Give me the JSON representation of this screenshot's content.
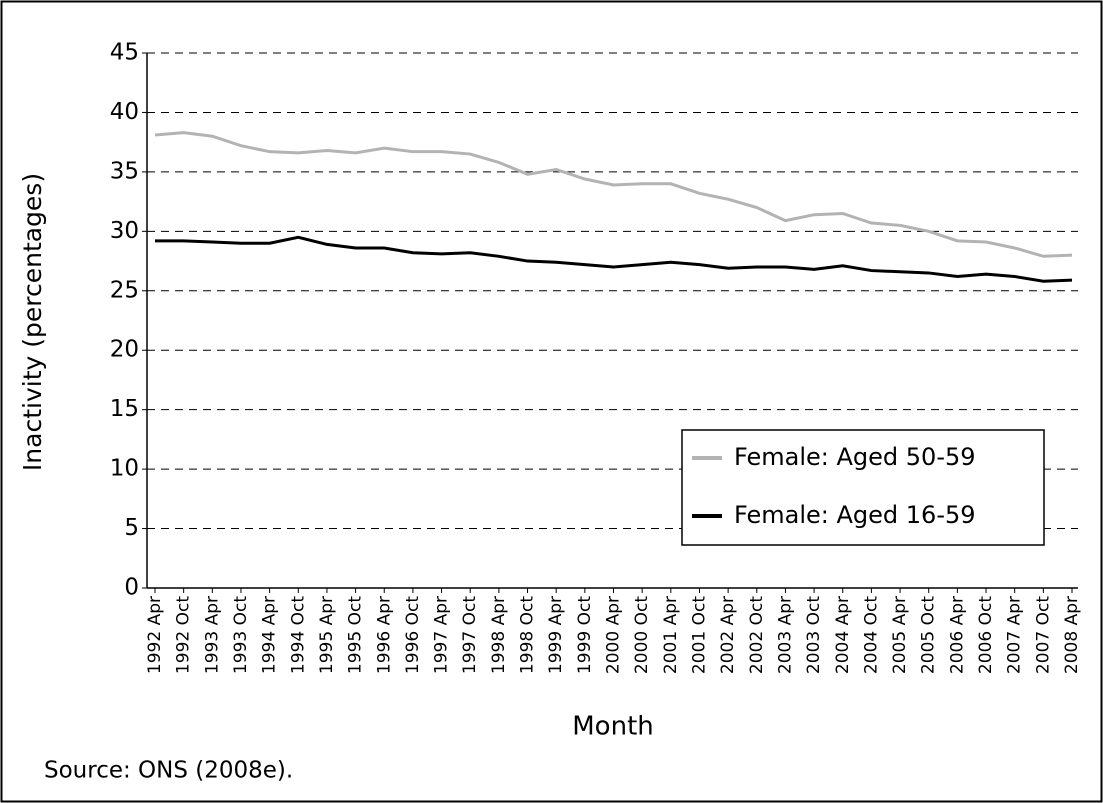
{
  "chart_data": {
    "type": "line",
    "y_label": "Inactivity (percentages)",
    "x_label": "Month",
    "source": "Source: ONS (2008e).",
    "categories": [
      "1992 Apr",
      "1992 Oct",
      "1993 Apr",
      "1993 Oct",
      "1994 Apr",
      "1994 Oct",
      "1995 Apr",
      "1995 Oct",
      "1996 Apr",
      "1996 Oct",
      "1997 Apr",
      "1997 Oct",
      "1998 Apr",
      "1998 Oct",
      "1999 Apr",
      "1999 Oct",
      "2000 Apr",
      "2000 Oct",
      "2001 Apr",
      "2001 Oct",
      "2002 Apr",
      "2002 Oct",
      "2003 Apr",
      "2003 Oct",
      "2004 Apr",
      "2004 Oct",
      "2005 Apr",
      "2005 Oct",
      "2006 Apr",
      "2006 Oct",
      "2007 Apr",
      "2007 Oct",
      "2008 Apr"
    ],
    "series": [
      {
        "name": "Female: Aged 50-59",
        "color": "#b3b3b3",
        "values": [
          38.1,
          38.3,
          38.0,
          37.2,
          36.7,
          36.6,
          36.8,
          36.6,
          37.0,
          36.7,
          36.7,
          36.5,
          35.8,
          34.8,
          35.2,
          34.4,
          33.9,
          34.0,
          34.0,
          33.2,
          32.7,
          32.0,
          30.9,
          31.4,
          31.5,
          30.7,
          30.5,
          30.0,
          29.2,
          29.1,
          28.6,
          27.9,
          28.0
        ]
      },
      {
        "name": "Female: Aged 16-59",
        "color": "#000000",
        "values": [
          29.2,
          29.2,
          29.1,
          29.0,
          29.0,
          29.5,
          28.9,
          28.6,
          28.6,
          28.2,
          28.1,
          28.2,
          27.9,
          27.5,
          27.4,
          27.2,
          27.0,
          27.2,
          27.4,
          27.2,
          26.9,
          27.0,
          27.0,
          26.8,
          27.1,
          26.7,
          26.6,
          26.5,
          26.2,
          26.4,
          26.2,
          25.8,
          25.9
        ]
      }
    ],
    "ylim": [
      0,
      45
    ],
    "yticks": [
      0,
      5,
      10,
      15,
      20,
      25,
      30,
      35,
      40,
      45
    ],
    "grid": true
  }
}
